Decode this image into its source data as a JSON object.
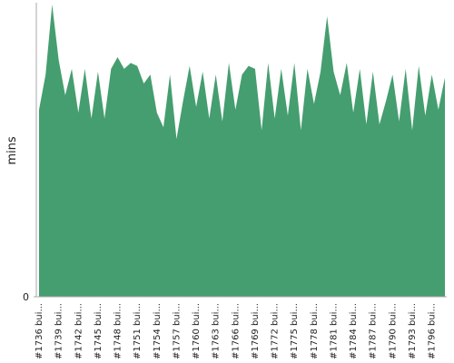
{
  "chart_data": {
    "type": "area",
    "y_label": "mins",
    "categories": [
      "#1736 bui...",
      null,
      null,
      "#1739 bui...",
      null,
      null,
      "#1742 bui...",
      null,
      null,
      "#1745 bui...",
      null,
      null,
      "#1748 bui...",
      null,
      null,
      "#1751 bui...",
      null,
      null,
      "#1754 bui...",
      null,
      null,
      "#1757 bui...",
      null,
      null,
      "#1760 bui...",
      null,
      null,
      "#1763 bui...",
      null,
      null,
      "#1766 bui...",
      null,
      null,
      "#1769 bui...",
      null,
      null,
      "#1772 bui...",
      null,
      null,
      "#1775 bui...",
      null,
      null,
      "#1778 bui...",
      null,
      null,
      "#1781 bui...",
      null,
      null,
      "#1784 bui...",
      null,
      null,
      "#1787 bui...",
      null,
      null,
      "#1790 bui...",
      null,
      null,
      "#1793 bui...",
      null,
      null,
      "#1796 bui...",
      null,
      null
    ],
    "values": [
      6.4,
      7.6,
      10.0,
      8.1,
      6.9,
      7.8,
      6.3,
      7.8,
      6.1,
      7.7,
      6.1,
      7.8,
      8.2,
      7.8,
      8.0,
      7.9,
      7.3,
      7.6,
      6.3,
      5.8,
      7.6,
      5.4,
      6.7,
      7.9,
      6.5,
      7.7,
      6.1,
      7.6,
      6.0,
      8.0,
      6.4,
      7.6,
      7.9,
      7.8,
      5.7,
      8.0,
      6.1,
      7.8,
      6.2,
      8.0,
      5.7,
      7.8,
      6.6,
      7.7,
      9.6,
      7.7,
      6.9,
      8.0,
      6.3,
      7.8,
      5.9,
      7.7,
      5.9,
      6.7,
      7.6,
      6.0,
      7.8,
      5.7,
      7.9,
      6.2,
      7.6,
      6.4,
      7.5
    ],
    "color": "#459e6f",
    "ylim": [
      0,
      10
    ],
    "yticks": [
      0
    ]
  }
}
